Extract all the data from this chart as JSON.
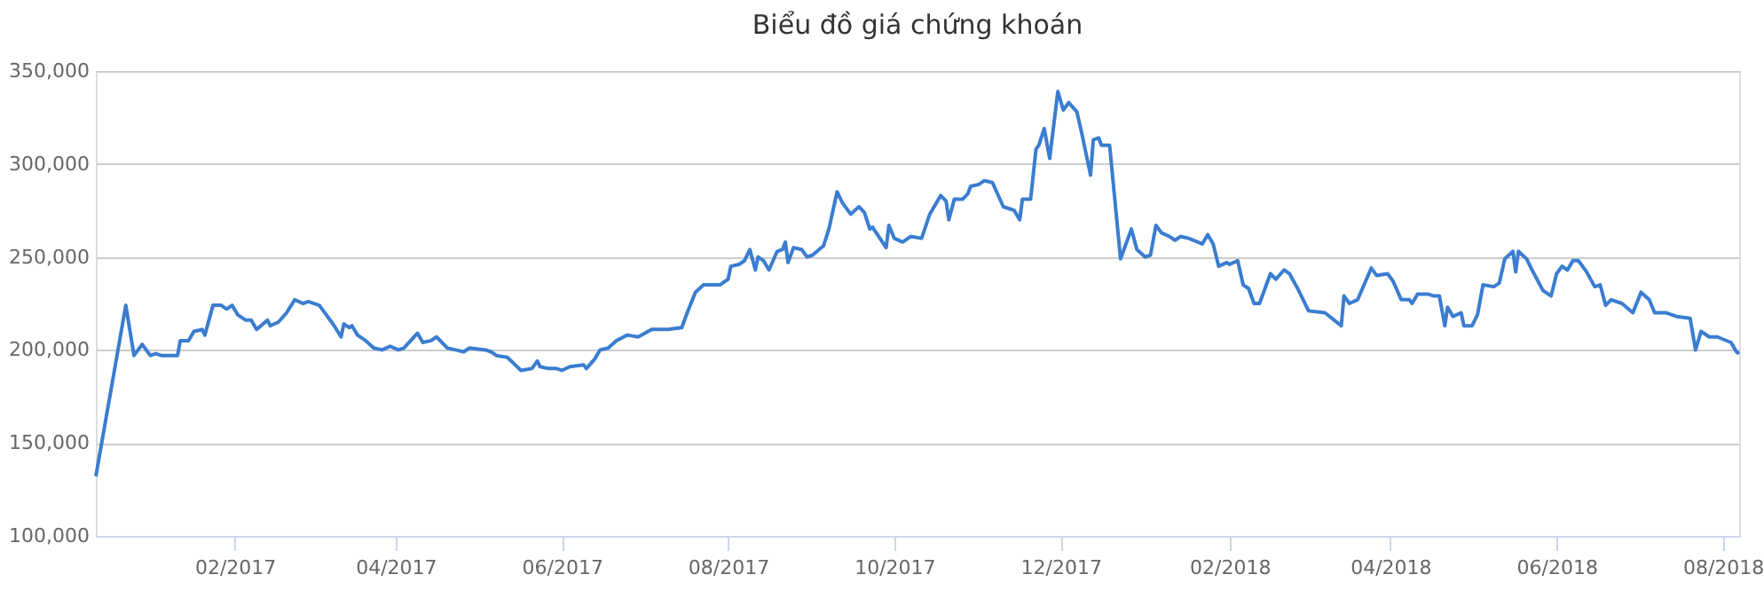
{
  "chart_data": {
    "type": "line",
    "title": "Biểu đồ giá chứng khoán",
    "x": [
      "2016-12-12",
      "2016-12-23",
      "2016-12-26",
      "2016-12-29",
      "2017-01-01",
      "2017-01-03",
      "2017-01-05",
      "2017-01-11",
      "2017-01-12",
      "2017-01-15",
      "2017-01-17",
      "2017-01-20",
      "2017-01-21",
      "2017-01-24",
      "2017-01-27",
      "2017-01-29",
      "2017-01-31",
      "2017-02-02",
      "2017-02-05",
      "2017-02-07",
      "2017-02-09",
      "2017-02-13",
      "2017-02-14",
      "2017-02-17",
      "2017-02-20",
      "2017-02-23",
      "2017-02-26",
      "2017-02-28",
      "2017-03-04",
      "2017-03-06",
      "2017-03-09",
      "2017-03-12",
      "2017-03-13",
      "2017-03-15",
      "2017-03-16",
      "2017-03-18",
      "2017-03-21",
      "2017-03-24",
      "2017-03-27",
      "2017-03-30",
      "2017-04-02",
      "2017-04-04",
      "2017-04-09",
      "2017-04-11",
      "2017-04-14",
      "2017-04-16",
      "2017-04-18",
      "2017-04-20",
      "2017-04-23",
      "2017-04-26",
      "2017-04-28",
      "2017-05-04",
      "2017-05-06",
      "2017-05-08",
      "2017-05-12",
      "2017-05-17",
      "2017-05-21",
      "2017-05-23",
      "2017-05-24",
      "2017-05-27",
      "2017-05-30",
      "2017-06-01",
      "2017-06-04",
      "2017-06-09",
      "2017-06-10",
      "2017-06-13",
      "2017-06-15",
      "2017-06-18",
      "2017-06-21",
      "2017-06-25",
      "2017-06-29",
      "2017-07-04",
      "2017-07-10",
      "2017-07-15",
      "2017-07-17",
      "2017-07-20",
      "2017-07-23",
      "2017-07-29",
      "2017-08-01",
      "2017-08-02",
      "2017-08-05",
      "2017-08-07",
      "2017-08-09",
      "2017-08-11",
      "2017-08-12",
      "2017-08-14",
      "2017-08-16",
      "2017-08-19",
      "2017-08-21",
      "2017-08-22",
      "2017-08-23",
      "2017-08-25",
      "2017-08-28",
      "2017-08-30",
      "2017-09-01",
      "2017-09-05",
      "2017-09-07",
      "2017-09-10",
      "2017-09-12",
      "2017-09-15",
      "2017-09-18",
      "2017-09-20",
      "2017-09-22",
      "2017-09-23",
      "2017-09-28",
      "2017-09-29",
      "2017-10-01",
      "2017-10-04",
      "2017-10-07",
      "2017-10-11",
      "2017-10-14",
      "2017-10-18",
      "2017-10-20",
      "2017-10-21",
      "2017-10-23",
      "2017-10-26",
      "2017-10-28",
      "2017-10-29",
      "2017-11-01",
      "2017-11-03",
      "2017-11-06",
      "2017-11-10",
      "2017-11-14",
      "2017-11-16",
      "2017-11-17",
      "2017-11-20",
      "2017-11-22",
      "2017-11-23",
      "2017-11-25",
      "2017-11-27",
      "2017-11-30",
      "2017-12-02",
      "2017-12-04",
      "2017-12-07",
      "2017-12-09",
      "2017-12-12",
      "2017-12-13",
      "2017-12-15",
      "2017-12-16",
      "2017-12-19",
      "2017-12-23",
      "2017-12-27",
      "2017-12-29",
      "2018-01-01",
      "2018-01-03",
      "2018-01-05",
      "2018-01-07",
      "2018-01-10",
      "2018-01-12",
      "2018-01-14",
      "2018-01-17",
      "2018-01-22",
      "2018-01-24",
      "2018-01-26",
      "2018-01-28",
      "2018-01-31",
      "2018-02-01",
      "2018-02-04",
      "2018-02-06",
      "2018-02-08",
      "2018-02-10",
      "2018-02-12",
      "2018-02-14",
      "2018-02-16",
      "2018-02-18",
      "2018-02-21",
      "2018-02-23",
      "2018-02-26",
      "2018-03-02",
      "2018-03-08",
      "2018-03-14",
      "2018-03-15",
      "2018-03-17",
      "2018-03-20",
      "2018-03-25",
      "2018-03-27",
      "2018-03-31",
      "2018-04-02",
      "2018-04-05",
      "2018-04-08",
      "2018-04-09",
      "2018-04-11",
      "2018-04-15",
      "2018-04-17",
      "2018-04-19",
      "2018-04-21",
      "2018-04-22",
      "2018-04-24",
      "2018-04-27",
      "2018-04-28",
      "2018-05-01",
      "2018-05-03",
      "2018-05-05",
      "2018-05-09",
      "2018-05-11",
      "2018-05-13",
      "2018-05-16",
      "2018-05-17",
      "2018-05-18",
      "2018-05-21",
      "2018-05-23",
      "2018-05-27",
      "2018-05-30",
      "2018-06-01",
      "2018-06-03",
      "2018-06-05",
      "2018-06-07",
      "2018-06-09",
      "2018-06-12",
      "2018-06-15",
      "2018-06-17",
      "2018-06-19",
      "2018-06-21",
      "2018-06-25",
      "2018-06-29",
      "2018-07-02",
      "2018-07-05",
      "2018-07-07",
      "2018-07-11",
      "2018-07-15",
      "2018-07-20",
      "2018-07-22",
      "2018-07-24",
      "2018-07-27",
      "2018-07-30",
      "2018-08-04",
      "2018-08-06",
      "2018-08-07"
    ],
    "series": [
      {
        "color": "#3a7dd0",
        "values": [
          132000,
          224000,
          197000,
          203000,
          197000,
          198000,
          197000,
          197000,
          205000,
          205000,
          210000,
          211000,
          208000,
          224000,
          224000,
          222000,
          224000,
          219000,
          216000,
          216000,
          211000,
          216000,
          213000,
          215000,
          220000,
          227000,
          225000,
          226000,
          224000,
          220000,
          214000,
          207000,
          214000,
          212000,
          213000,
          208000,
          205000,
          201000,
          200000,
          202000,
          200000,
          201000,
          209000,
          204000,
          205000,
          207000,
          204000,
          201000,
          200000,
          199000,
          201000,
          200000,
          199000,
          197000,
          196000,
          189000,
          190000,
          194000,
          191000,
          190000,
          190000,
          189000,
          191000,
          192000,
          190000,
          195000,
          200000,
          201000,
          205000,
          208000,
          207000,
          211000,
          211000,
          212000,
          220000,
          231000,
          235000,
          235000,
          238000,
          245000,
          246000,
          248000,
          254000,
          243000,
          250000,
          248000,
          243000,
          253000,
          254000,
          258000,
          247000,
          255000,
          254000,
          250000,
          251000,
          256000,
          265000,
          285000,
          279000,
          273000,
          277000,
          274000,
          265000,
          266000,
          255000,
          267000,
          260000,
          258000,
          261000,
          260000,
          273000,
          283000,
          280000,
          270000,
          281000,
          281000,
          284000,
          288000,
          289000,
          291000,
          290000,
          277000,
          275000,
          270000,
          281000,
          281000,
          308000,
          310000,
          319000,
          303000,
          339000,
          329000,
          333000,
          328000,
          315000,
          294000,
          313000,
          314000,
          310000,
          310000,
          249000,
          265000,
          254000,
          250000,
          251000,
          267000,
          263000,
          261000,
          259000,
          261000,
          260000,
          257000,
          262000,
          257000,
          245000,
          247000,
          246000,
          248000,
          235000,
          233000,
          225000,
          225000,
          233000,
          241000,
          238000,
          243000,
          241000,
          233000,
          221000,
          220000,
          213000,
          229000,
          225000,
          227000,
          244000,
          240000,
          241000,
          237000,
          227000,
          227000,
          225000,
          230000,
          230000,
          229000,
          229000,
          213000,
          223000,
          218000,
          220000,
          213000,
          213000,
          219000,
          235000,
          234000,
          236000,
          249000,
          253000,
          242000,
          253000,
          249000,
          243000,
          232000,
          229000,
          241000,
          245000,
          243000,
          248000,
          248000,
          242000,
          234000,
          235000,
          224000,
          227000,
          225000,
          220000,
          231000,
          227000,
          220000,
          220000,
          218000,
          217000,
          200000,
          210000,
          207000,
          207000,
          204000,
          199000,
          198000
        ]
      }
    ],
    "xlim": [
      "2016-12-12",
      "2018-08-07"
    ],
    "xticks": [
      {
        "value": "2017-02-01",
        "label": "02/2017"
      },
      {
        "value": "2017-04-01",
        "label": "04/2017"
      },
      {
        "value": "2017-06-01",
        "label": "06/2017"
      },
      {
        "value": "2017-08-01",
        "label": "08/2017"
      },
      {
        "value": "2017-10-01",
        "label": "10/2017"
      },
      {
        "value": "2017-12-01",
        "label": "12/2017"
      },
      {
        "value": "2018-02-01",
        "label": "02/2018"
      },
      {
        "value": "2018-04-01",
        "label": "04/2018"
      },
      {
        "value": "2018-06-01",
        "label": "06/2018"
      },
      {
        "value": "2018-08-01",
        "label": "08/2018"
      }
    ],
    "ylim": [
      100000,
      350000
    ],
    "yticks": [
      {
        "value": 100000,
        "label": "100,000"
      },
      {
        "value": 150000,
        "label": "150,000"
      },
      {
        "value": 200000,
        "label": "200,000"
      },
      {
        "value": 250000,
        "label": "250,000"
      },
      {
        "value": 300000,
        "label": "300,000"
      },
      {
        "value": 350000,
        "label": "350,000"
      }
    ],
    "grid": "y"
  }
}
